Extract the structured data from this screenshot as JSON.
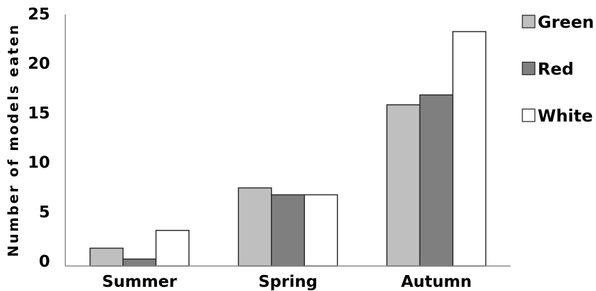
{
  "chart_data": {
    "type": "bar",
    "categories": [
      "Summer",
      "Spring",
      "Autumn"
    ],
    "series": [
      {
        "name": "Green",
        "values": [
          1.8,
          7.9,
          16.3
        ],
        "color": "#bfbfbf"
      },
      {
        "name": "Red",
        "values": [
          0.7,
          7.2,
          17.3
        ],
        "color": "#7f7f7f"
      },
      {
        "name": "White",
        "values": [
          3.6,
          7.2,
          23.7
        ],
        "color": "#ffffff"
      }
    ],
    "ylabel": "Number of models eaten",
    "ylim": [
      0,
      25
    ],
    "yticks": [
      0,
      5,
      10,
      15,
      20,
      25
    ],
    "grid": false,
    "legend": "right"
  }
}
